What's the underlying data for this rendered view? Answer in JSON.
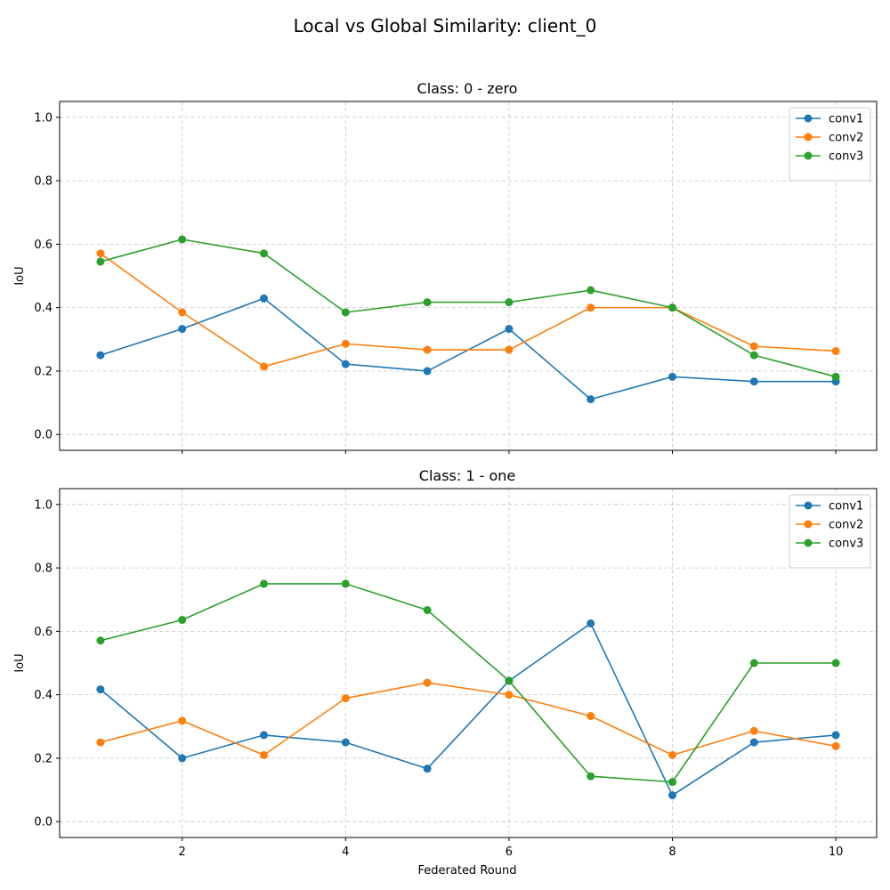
{
  "figure": {
    "title": "Local vs Global Similarity: client_0"
  },
  "chart_data": [
    {
      "type": "line",
      "title": "Class: 0 - zero",
      "xlabel": "",
      "ylabel": "IoU",
      "x": [
        1,
        2,
        3,
        4,
        5,
        6,
        7,
        8,
        9,
        10
      ],
      "xlim": [
        0.5,
        10.5
      ],
      "ylim": [
        -0.05,
        1.05
      ],
      "xticks": [
        2,
        4,
        6,
        8,
        10
      ],
      "yticks": [
        0.0,
        0.2,
        0.4,
        0.6,
        0.8,
        1.0
      ],
      "show_xtick_labels": false,
      "grid": true,
      "legend": "top-right",
      "series": [
        {
          "name": "conv1",
          "color": "#1f77b4",
          "values": [
            0.25,
            0.333,
            0.429,
            0.222,
            0.2,
            0.333,
            0.111,
            0.182,
            0.167,
            0.167
          ]
        },
        {
          "name": "conv2",
          "color": "#ff7f0e",
          "values": [
            0.571,
            0.385,
            0.214,
            0.286,
            0.267,
            0.267,
            0.4,
            0.4,
            0.278,
            0.263
          ]
        },
        {
          "name": "conv3",
          "color": "#2ca02c",
          "values": [
            0.545,
            0.615,
            0.571,
            0.385,
            0.417,
            0.417,
            0.455,
            0.4,
            0.25,
            0.182
          ]
        }
      ]
    },
    {
      "type": "line",
      "title": "Class: 1 - one",
      "xlabel": "Federated Round",
      "ylabel": "IoU",
      "x": [
        1,
        2,
        3,
        4,
        5,
        6,
        7,
        8,
        9,
        10
      ],
      "xlim": [
        0.5,
        10.5
      ],
      "ylim": [
        -0.05,
        1.05
      ],
      "xticks": [
        2,
        4,
        6,
        8,
        10
      ],
      "yticks": [
        0.0,
        0.2,
        0.4,
        0.6,
        0.8,
        1.0
      ],
      "show_xtick_labels": true,
      "grid": true,
      "legend": "top-right",
      "series": [
        {
          "name": "conv1",
          "color": "#1f77b4",
          "values": [
            0.417,
            0.2,
            0.273,
            0.25,
            0.167,
            0.444,
            0.625,
            0.083,
            0.25,
            0.273
          ]
        },
        {
          "name": "conv2",
          "color": "#ff7f0e",
          "values": [
            0.25,
            0.318,
            0.21,
            0.389,
            0.438,
            0.4,
            0.333,
            0.21,
            0.286,
            0.238
          ]
        },
        {
          "name": "conv3",
          "color": "#2ca02c",
          "values": [
            0.571,
            0.636,
            0.75,
            0.75,
            0.667,
            0.444,
            0.143,
            0.125,
            0.5,
            0.5
          ]
        }
      ]
    }
  ]
}
